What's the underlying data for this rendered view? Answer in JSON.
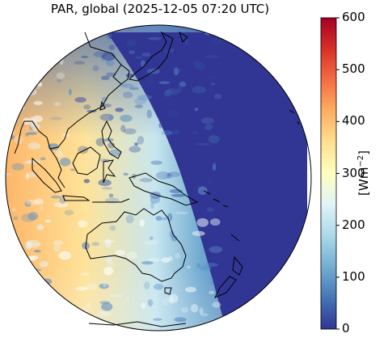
{
  "title": "PAR, global (2025-12-05 07:20 UTC)",
  "colorbar": {
    "label_prefix": "[Wm",
    "label_exp": "−2",
    "label_suffix": "]",
    "ticks": [
      "0",
      "100",
      "200",
      "300",
      "400",
      "500",
      "600"
    ],
    "range": [
      0,
      600
    ],
    "colormap": [
      "#313695",
      "#4575b4",
      "#74add1",
      "#abd9e9",
      "#e0f3f8",
      "#ffffbf",
      "#fee090",
      "#fdae61",
      "#f46d43",
      "#d73027",
      "#a50026"
    ]
  },
  "map": {
    "projection": "orthographic",
    "features": [
      "coastlines"
    ],
    "night_color": "#313695"
  }
}
